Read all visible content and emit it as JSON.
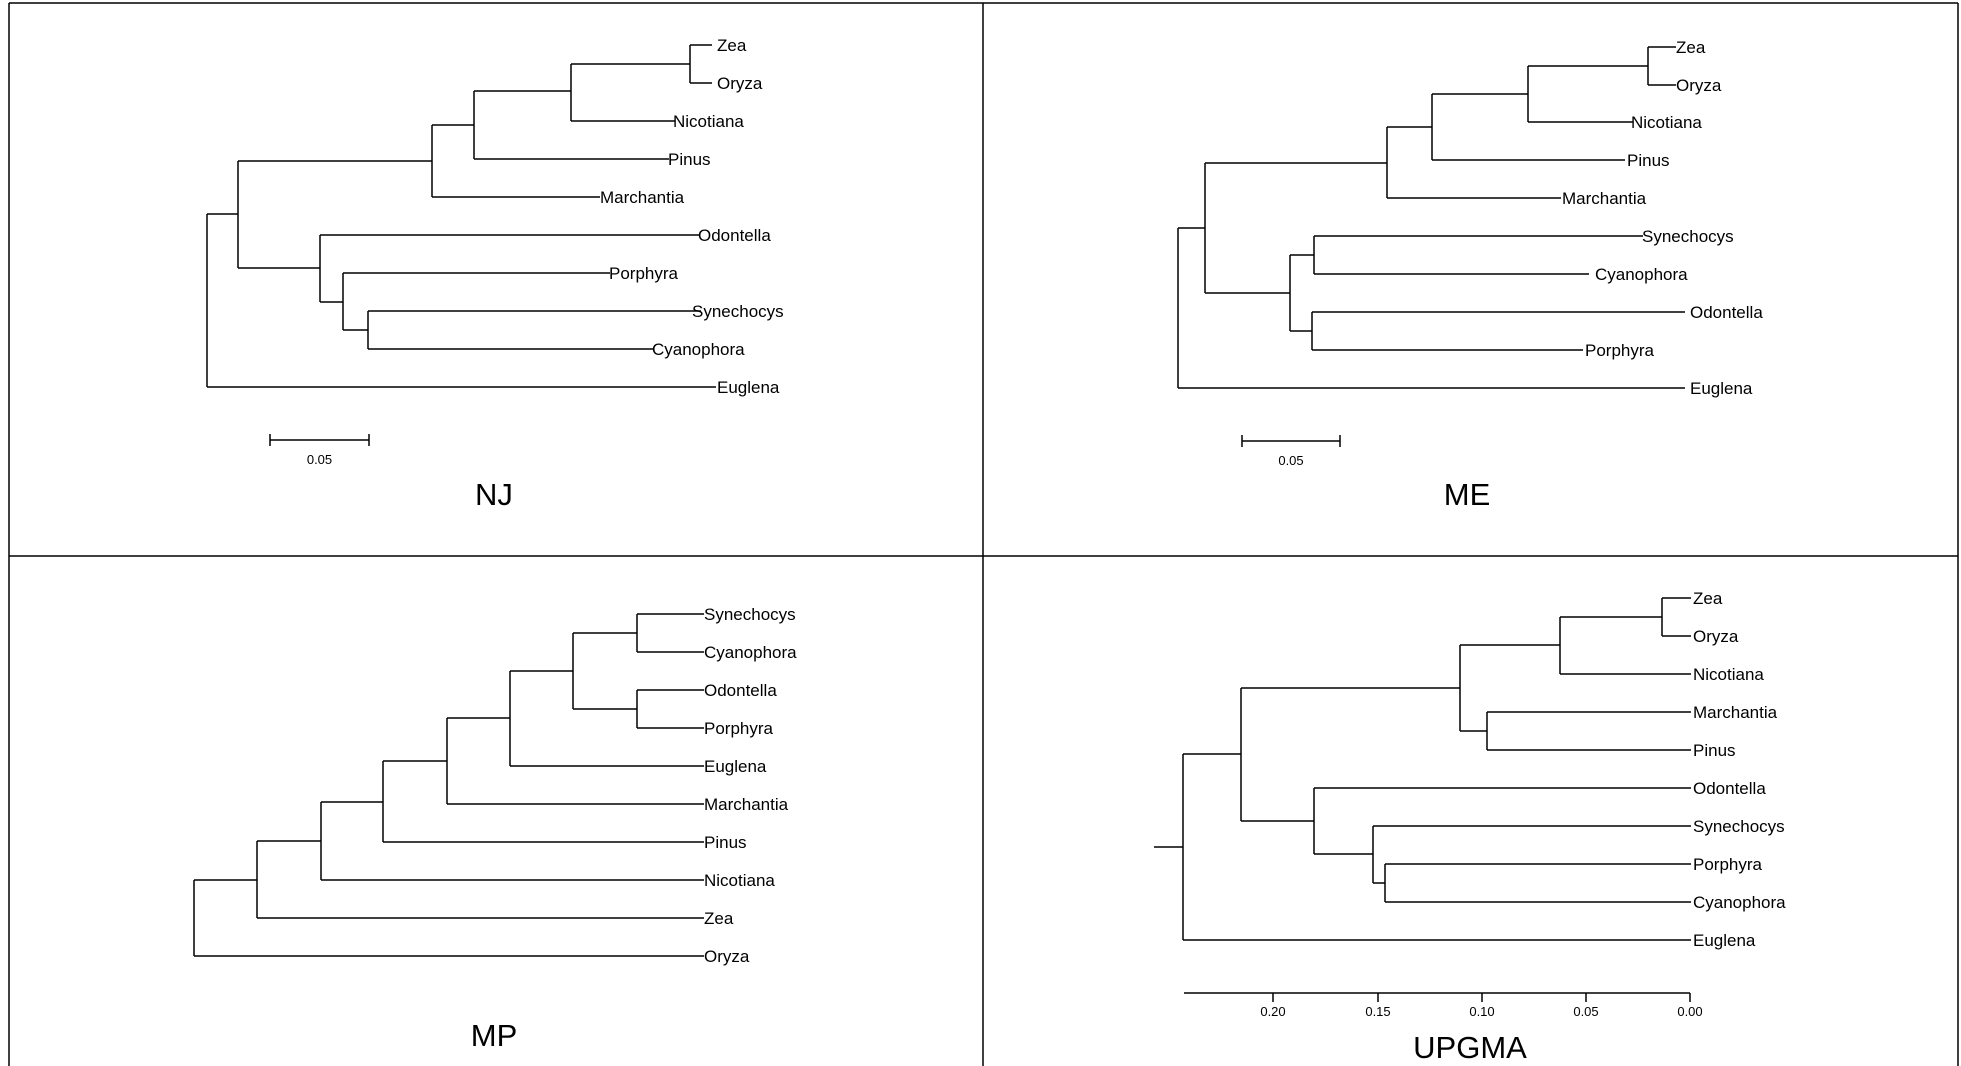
{
  "panels": [
    {
      "title": "NJ",
      "scale_label": "0.05",
      "leaves": [
        "Zea",
        "Oryza",
        "Nicotiana",
        "Pinus",
        "Marchantia",
        "Odontella",
        "Porphyra",
        "Synechocys",
        "Cyanophora",
        "Euglena"
      ]
    },
    {
      "title": "ME",
      "scale_label": "0.05",
      "leaves": [
        "Zea",
        "Oryza",
        "Nicotiana",
        "Pinus",
        "Marchantia",
        "Synechocys",
        "Cyanophora",
        "Odontella",
        "Porphyra",
        "Euglena"
      ]
    },
    {
      "title": "MP",
      "leaves": [
        "Synechocys",
        "Cyanophora",
        "Odontella",
        "Porphyra",
        "Euglena",
        "Marchantia",
        "Pinus",
        "Nicotiana",
        "Zea",
        "Oryza"
      ]
    },
    {
      "title": "UPGMA",
      "axis_ticks": [
        "0.20",
        "0.15",
        "0.10",
        "0.05",
        "0.00"
      ],
      "leaves": [
        "Zea",
        "Oryza",
        "Nicotiana",
        "Marchantia",
        "Pinus",
        "Odontella",
        "Synechocys",
        "Porphyra",
        "Cyanophora",
        "Euglena"
      ]
    }
  ]
}
